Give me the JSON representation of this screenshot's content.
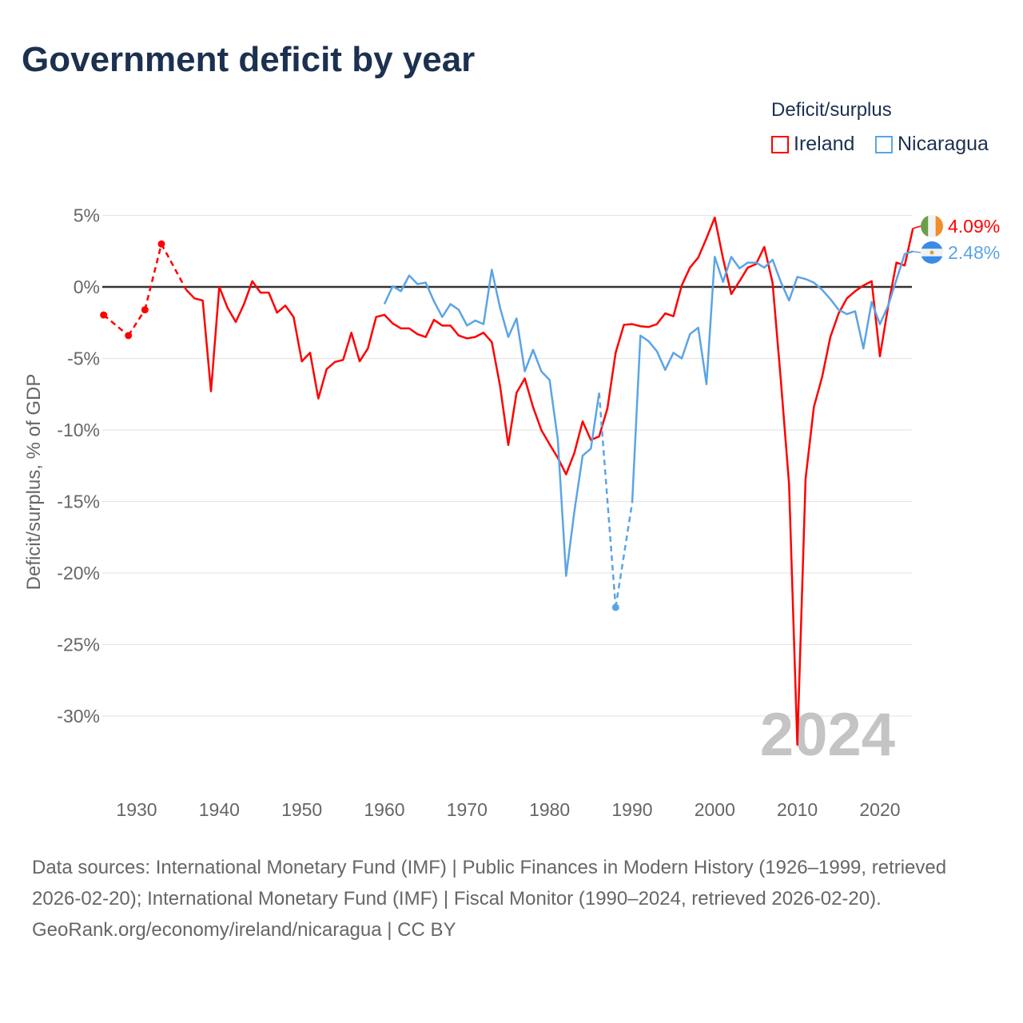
{
  "chart_data": {
    "type": "line",
    "title": "Government deficit by year",
    "ylabel": "Deficit/surplus, % of GDP",
    "xlabel": "",
    "ylim": [
      -30,
      5
    ],
    "xlim": [
      1926,
      2024
    ],
    "y_ticks": [
      "5%",
      "0%",
      "-5%",
      "-10%",
      "-15%",
      "-20%",
      "-25%",
      "-30%"
    ],
    "y_tick_values": [
      5,
      0,
      -5,
      -10,
      -15,
      -20,
      -25,
      -30
    ],
    "x_ticks": [
      "1930",
      "1940",
      "1950",
      "1960",
      "1970",
      "1980",
      "1990",
      "2000",
      "2010",
      "2020"
    ],
    "x_tick_values": [
      1930,
      1940,
      1950,
      1960,
      1970,
      1980,
      1990,
      2000,
      2010,
      2020
    ],
    "legend_title": "Deficit/surplus",
    "legend_placement": "top-right",
    "year_watermark": "2024",
    "grid": true,
    "series": [
      {
        "name": "Ireland",
        "color": "#ff0000",
        "end_label": "4.09%",
        "flag": "ireland-flag",
        "points": [
          [
            1926,
            -1.96
          ],
          [
            1929,
            -3.4
          ],
          [
            1931,
            -1.6
          ],
          [
            1933,
            3.0
          ],
          [
            1936,
            -0.2
          ],
          [
            1937,
            -0.8
          ],
          [
            1938,
            -0.95
          ],
          [
            1939,
            -7.3
          ],
          [
            1940,
            0
          ],
          [
            1941,
            -1.45
          ],
          [
            1942,
            -2.45
          ],
          [
            1943,
            -1.2
          ],
          [
            1944,
            0.4
          ],
          [
            1945,
            -0.4
          ],
          [
            1946,
            -0.4
          ],
          [
            1947,
            -1.8
          ],
          [
            1948,
            -1.3
          ],
          [
            1949,
            -2.1
          ],
          [
            1950,
            -5.2
          ],
          [
            1951,
            -4.6
          ],
          [
            1952,
            -7.8
          ],
          [
            1953,
            -5.75
          ],
          [
            1954,
            -5.25
          ],
          [
            1955,
            -5.1
          ],
          [
            1956,
            -3.2
          ],
          [
            1957,
            -5.2
          ],
          [
            1958,
            -4.3
          ],
          [
            1959,
            -2.1
          ],
          [
            1960,
            -1.95
          ],
          [
            1961,
            -2.55
          ],
          [
            1962,
            -2.9
          ],
          [
            1963,
            -2.9
          ],
          [
            1964,
            -3.3
          ],
          [
            1965,
            -3.5
          ],
          [
            1966,
            -2.3
          ],
          [
            1967,
            -2.7
          ],
          [
            1968,
            -2.7
          ],
          [
            1969,
            -3.4
          ],
          [
            1970,
            -3.6
          ],
          [
            1971,
            -3.5
          ],
          [
            1972,
            -3.2
          ],
          [
            1973,
            -3.85
          ],
          [
            1974,
            -6.9
          ],
          [
            1975,
            -11.05
          ],
          [
            1976,
            -7.4
          ],
          [
            1977,
            -6.4
          ],
          [
            1978,
            -8.4
          ],
          [
            1979,
            -10.0
          ],
          [
            1980,
            -11.0
          ],
          [
            1981,
            -11.95
          ],
          [
            1982,
            -13.1
          ],
          [
            1983,
            -11.6
          ],
          [
            1984,
            -9.4
          ],
          [
            1985,
            -10.7
          ],
          [
            1986,
            -10.45
          ],
          [
            1987,
            -8.5
          ],
          [
            1988,
            -4.6
          ],
          [
            1989,
            -2.65
          ],
          [
            1990,
            -2.6
          ],
          [
            1991,
            -2.75
          ],
          [
            1992,
            -2.8
          ],
          [
            1993,
            -2.6
          ],
          [
            1994,
            -1.85
          ],
          [
            1995,
            -2.05
          ],
          [
            1996,
            0.1
          ],
          [
            1997,
            1.35
          ],
          [
            1998,
            2.05
          ],
          [
            1999,
            3.4
          ],
          [
            2000,
            4.85
          ],
          [
            2001,
            2.0
          ],
          [
            2002,
            -0.5
          ],
          [
            2003,
            0.4
          ],
          [
            2004,
            1.35
          ],
          [
            2005,
            1.6
          ],
          [
            2006,
            2.8
          ],
          [
            2007,
            0.3
          ],
          [
            2008,
            -6.5
          ],
          [
            2009,
            -13.8
          ],
          [
            2010,
            -32.0
          ],
          [
            2011,
            -13.4
          ],
          [
            2012,
            -8.4
          ],
          [
            2013,
            -6.3
          ],
          [
            2014,
            -3.5
          ],
          [
            2015,
            -1.85
          ],
          [
            2016,
            -0.8
          ],
          [
            2017,
            -0.3
          ],
          [
            2018,
            0.1
          ],
          [
            2019,
            0.4
          ],
          [
            2020,
            -4.85
          ],
          [
            2021,
            -1.35
          ],
          [
            2022,
            1.7
          ],
          [
            2023,
            1.5
          ],
          [
            2024,
            4.09
          ]
        ]
      },
      {
        "name": "Nicaragua",
        "color": "#5ba4e6",
        "end_label": "2.48%",
        "flag": "nicaragua-flag",
        "points": [
          [
            1960,
            -1.2
          ],
          [
            1961,
            0.05
          ],
          [
            1962,
            -0.3
          ],
          [
            1963,
            0.8
          ],
          [
            1964,
            0.2
          ],
          [
            1965,
            0.3
          ],
          [
            1966,
            -1.0
          ],
          [
            1967,
            -2.1
          ],
          [
            1968,
            -1.2
          ],
          [
            1969,
            -1.6
          ],
          [
            1970,
            -2.7
          ],
          [
            1971,
            -2.35
          ],
          [
            1972,
            -2.6
          ],
          [
            1973,
            1.2
          ],
          [
            1974,
            -1.45
          ],
          [
            1975,
            -3.5
          ],
          [
            1976,
            -2.2
          ],
          [
            1977,
            -5.9
          ],
          [
            1978,
            -4.4
          ],
          [
            1979,
            -5.9
          ],
          [
            1980,
            -6.5
          ],
          [
            1981,
            -10.7
          ],
          [
            1982,
            -20.2
          ],
          [
            1983,
            -15.7
          ],
          [
            1984,
            -11.8
          ],
          [
            1985,
            -11.3
          ],
          [
            1986,
            -7.4
          ],
          [
            1988,
            -22.4
          ],
          [
            1990,
            -15.1
          ],
          [
            1991,
            -3.4
          ],
          [
            1992,
            -3.8
          ],
          [
            1993,
            -4.5
          ],
          [
            1994,
            -5.8
          ],
          [
            1995,
            -4.6
          ],
          [
            1996,
            -5.0
          ],
          [
            1997,
            -3.3
          ],
          [
            1998,
            -2.85
          ],
          [
            1999,
            -6.8
          ],
          [
            2000,
            2.1
          ],
          [
            2001,
            0.35
          ],
          [
            2002,
            2.1
          ],
          [
            2003,
            1.3
          ],
          [
            2004,
            1.7
          ],
          [
            2005,
            1.7
          ],
          [
            2006,
            1.35
          ],
          [
            2007,
            1.9
          ],
          [
            2008,
            0.35
          ],
          [
            2009,
            -0.95
          ],
          [
            2010,
            0.7
          ],
          [
            2011,
            0.55
          ],
          [
            2012,
            0.3
          ],
          [
            2013,
            -0.2
          ],
          [
            2014,
            -0.85
          ],
          [
            2015,
            -1.6
          ],
          [
            2016,
            -1.9
          ],
          [
            2017,
            -1.7
          ],
          [
            2018,
            -4.3
          ],
          [
            2019,
            -1.05
          ],
          [
            2020,
            -2.6
          ],
          [
            2021,
            -1.3
          ],
          [
            2022,
            0.5
          ],
          [
            2023,
            2.3
          ],
          [
            2024,
            2.48
          ]
        ]
      }
    ]
  },
  "footer": {
    "sources": "Data sources: International Monetary Fund (IMF) | Public Finances in Modern History (1926–1999, retrieved 2026-02-20); International Monetary Fund (IMF) | Fiscal Monitor (1990–2024, retrieved 2026-02-20).",
    "link": "GeoRank.org/economy/ireland/nicaragua | CC BY"
  }
}
